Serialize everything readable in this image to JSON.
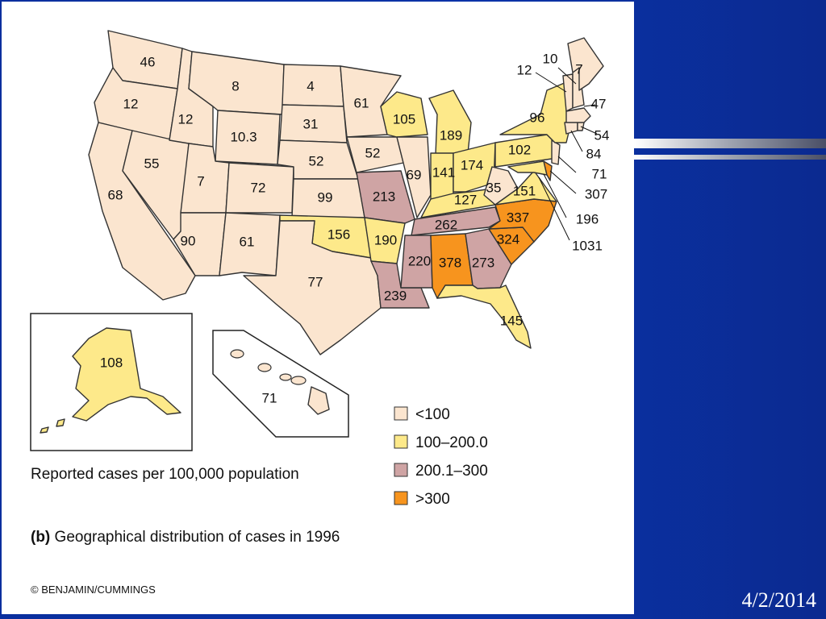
{
  "colors": {
    "lt100": "#fbe5cf",
    "r100_200": "#fde98a",
    "r200_300": "#cfa4a4",
    "gt300": "#f7941e",
    "slide_bg": "#0b2a9a"
  },
  "legend": [
    {
      "label": "<100",
      "color": "#fbe5cf"
    },
    {
      "label": "100–200.0",
      "color": "#fde98a"
    },
    {
      "label": "200.1–300",
      "color": "#cfa4a4"
    },
    {
      "label": ">300",
      "color": "#f7941e"
    }
  ],
  "legend_title": "Reported cases per 100,000 population",
  "caption_bold": "(b)",
  "caption_rest": " Geographical distribution of cases in 1996",
  "copyright": "© BENJAMIN/CUMMINGS",
  "date": "4/2/2014",
  "states": {
    "WA": "46",
    "OR": "12",
    "CA": "68",
    "ID": "12",
    "NV": "55",
    "MT": "8",
    "WY": "10.3",
    "UT": "7",
    "AZ": "90",
    "CO": "72",
    "NM": "61",
    "ND": "4",
    "SD": "31",
    "NE": "52",
    "KS": "99",
    "OK": "156",
    "TX": "77",
    "MN": "61",
    "IA": "52",
    "MO": "213",
    "AR": "190",
    "LA": "239",
    "WI": "105",
    "IL": "69",
    "MI": "189",
    "IN": "141",
    "OH": "174",
    "KY": "127",
    "TN": "262",
    "MS": "220",
    "AL": "378",
    "GA": "273",
    "FL": "145",
    "SC": "324",
    "NC": "337",
    "VA": "151",
    "WV": "35",
    "PA": "102",
    "NY": "96",
    "ME": "7",
    "NH": "10",
    "VT": "12",
    "MA": "47",
    "RI": "54",
    "CT": "84",
    "NJ": "71",
    "DE": "307",
    "MD": "196",
    "DC": "1031",
    "AK": "108",
    "HI": "71"
  }
}
